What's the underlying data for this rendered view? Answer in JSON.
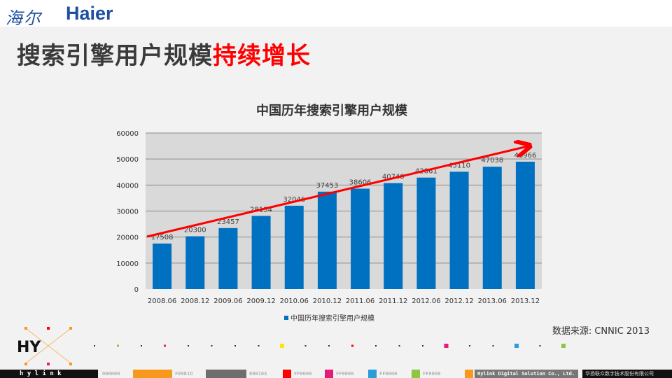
{
  "header": {
    "logo_cn": "海尔",
    "logo_en": "Haier"
  },
  "title": {
    "part1": "搜索引擎用户规模",
    "part2": "持续增长"
  },
  "colors": {
    "bar": "#0070c0",
    "arrow": "#ff0000",
    "plot_bg": "#d9d9d9",
    "title_highlight": "#ff0000"
  },
  "chart_data": {
    "type": "bar",
    "title": "中国历年搜索引擎用户规模",
    "categories": [
      "2008.06",
      "2008.12",
      "2009.06",
      "2009.12",
      "2010.06",
      "2010.12",
      "2011.06",
      "2011.12",
      "2012.06",
      "2012.12",
      "2013.06",
      "2013.12"
    ],
    "series": [
      {
        "name": "中国历年搜索引擎用户规模",
        "values": [
          17508,
          20300,
          23457,
          28134,
          32046,
          37453,
          38606,
          40740,
          42861,
          45110,
          47038,
          48966
        ]
      }
    ],
    "ylim": [
      0,
      60000
    ],
    "yticks": [
      0,
      10000,
      20000,
      30000,
      40000,
      50000,
      60000
    ],
    "grid": true,
    "legend": "bottom",
    "annotation": "trend arrow (red, rising)"
  },
  "source": "数据来源: CNNIC 2013",
  "footer": {
    "brand": "h y l i n k",
    "codes": [
      "000000",
      "F8981D",
      "808184",
      "FF0000",
      "FF0000",
      "FF0000",
      "FF0000"
    ],
    "company_en": "Hylink Digital Solution Co., Ltd.",
    "company_cn": "华扬联众数字技术股份有限公司",
    "hy_logo": "HY"
  }
}
